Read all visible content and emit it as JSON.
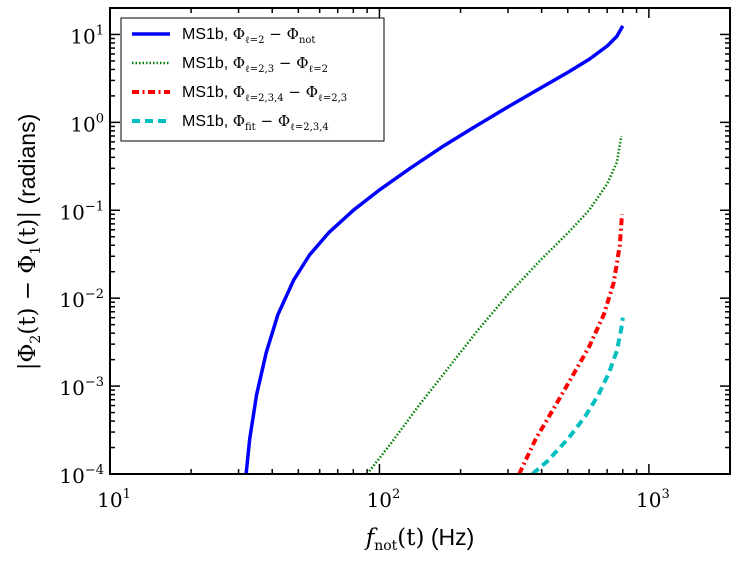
{
  "chart_data": {
    "type": "line",
    "title": "",
    "xlabel": "f_not(t) (Hz)",
    "ylabel": "|Φ2(t) − Φ1(t)| (radians)",
    "xscale": "log",
    "yscale": "log",
    "xlim": [
      10,
      2000
    ],
    "ylim": [
      0.0001,
      20
    ],
    "x_ticks": [
      {
        "value": 10,
        "base": "10",
        "exp": "1"
      },
      {
        "value": 100,
        "base": "10",
        "exp": "2"
      },
      {
        "value": 1000,
        "base": "10",
        "exp": "3"
      }
    ],
    "y_ticks": [
      {
        "value": 0.0001,
        "base": "10",
        "exp": "−4"
      },
      {
        "value": 0.001,
        "base": "10",
        "exp": "−3"
      },
      {
        "value": 0.01,
        "base": "10",
        "exp": "−2"
      },
      {
        "value": 0.1,
        "base": "10",
        "exp": "−1"
      },
      {
        "value": 1,
        "base": "10",
        "exp": "0"
      },
      {
        "value": 10,
        "base": "10",
        "exp": "1"
      }
    ],
    "grid": false,
    "legend_position": "top-left",
    "series": [
      {
        "name": "MS1b, Φℓ=2 − Φnot",
        "color": "#0000ff",
        "style": "solid",
        "x": [
          32,
          33,
          35,
          38,
          42,
          48,
          55,
          65,
          80,
          100,
          130,
          170,
          220,
          300,
          400,
          500,
          600,
          700,
          760,
          800
        ],
        "y": [
          0.0001,
          0.00025,
          0.0008,
          0.0024,
          0.0065,
          0.016,
          0.031,
          0.056,
          0.1,
          0.17,
          0.3,
          0.52,
          0.85,
          1.5,
          2.5,
          3.7,
          5.2,
          7.4,
          9.5,
          12.5
        ]
      },
      {
        "name": "MS1b, Φℓ=2,3 − Φℓ=2",
        "color": "#007f00",
        "style": "dotted",
        "x": [
          90,
          110,
          140,
          180,
          230,
          300,
          400,
          500,
          600,
          700,
          760,
          790
        ],
        "y": [
          0.0001,
          0.00022,
          0.0006,
          0.0016,
          0.0042,
          0.011,
          0.028,
          0.055,
          0.1,
          0.2,
          0.35,
          0.7
        ]
      },
      {
        "name": "MS1b, Φℓ=2,3,4 − Φℓ=2,3",
        "color": "#ff0000",
        "style": "dash-dot",
        "x": [
          330,
          380,
          450,
          520,
          600,
          680,
          740,
          780,
          795
        ],
        "y": [
          0.0001,
          0.00025,
          0.0006,
          0.0013,
          0.0028,
          0.0065,
          0.015,
          0.04,
          0.09
        ]
      },
      {
        "name": "MS1b, Φfit − Φℓ=2,3,4",
        "color": "#00bfbf",
        "style": "dashed",
        "x": [
          370,
          420,
          500,
          580,
          650,
          710,
          760,
          790,
          800
        ],
        "y": [
          0.0001,
          0.00014,
          0.00025,
          0.00045,
          0.0008,
          0.0014,
          0.0025,
          0.0045,
          0.006
        ]
      }
    ]
  },
  "axes": {
    "xlabel": {
      "math": "f",
      "sub": "not",
      "paren": "(t)",
      "unit": " (Hz)"
    },
    "ylabel": {
      "pre": "|Φ",
      "sub1": "2",
      "mid": "(t) − Φ",
      "sub2": "1",
      "post": "(t)|",
      "unit": " (radians)"
    }
  },
  "legend": {
    "entries": [
      {
        "prefix": "MS1b, ",
        "a": "Φ",
        "a_sub": "ℓ=2",
        "op": " − ",
        "b": "Φ",
        "b_sub": "not",
        "color": "#0000ff",
        "style": "solid"
      },
      {
        "prefix": "MS1b, ",
        "a": "Φ",
        "a_sub": "ℓ=2,3",
        "op": " − ",
        "b": "Φ",
        "b_sub": "ℓ=2",
        "color": "#007f00",
        "style": "dotted"
      },
      {
        "prefix": "MS1b, ",
        "a": "Φ",
        "a_sub": "ℓ=2,3,4",
        "op": " − ",
        "b": "Φ",
        "b_sub": "ℓ=2,3",
        "color": "#ff0000",
        "style": "dash-dot"
      },
      {
        "prefix": "MS1b, ",
        "a": "Φ",
        "a_sub": "fit",
        "op": " − ",
        "b": "Φ",
        "b_sub": "ℓ=2,3,4",
        "color": "#00bfbf",
        "style": "dashed"
      }
    ]
  }
}
